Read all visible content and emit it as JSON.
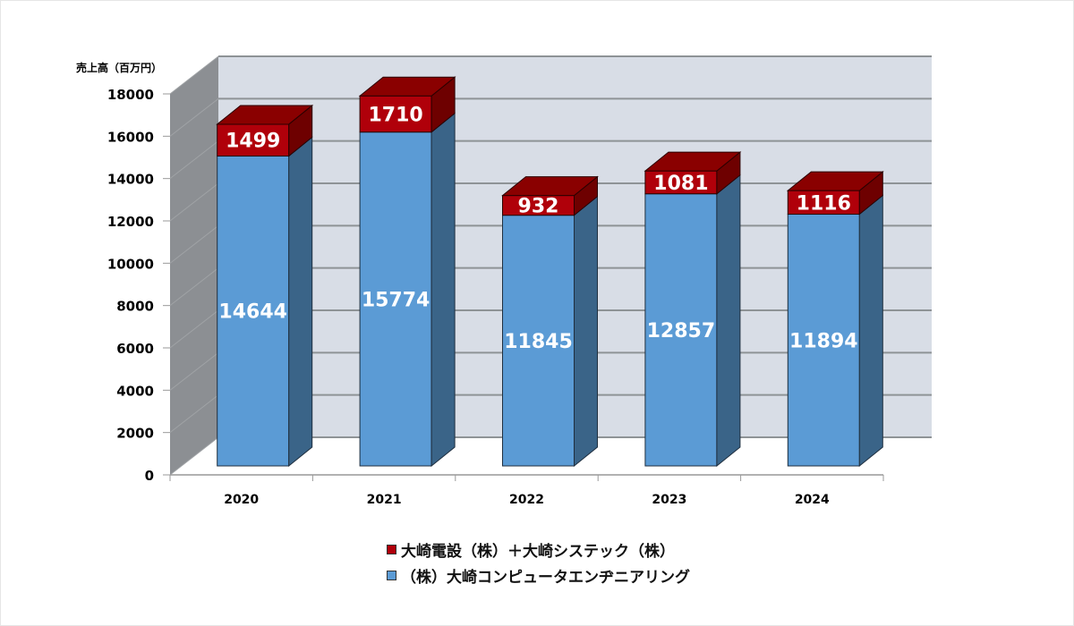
{
  "chart_data": {
    "type": "bar",
    "stacked": true,
    "three_d": true,
    "title": "",
    "ylabel": "売上高（百万円）",
    "xlabel": "",
    "ylim": [
      0,
      18000
    ],
    "yticks": [
      0,
      2000,
      4000,
      6000,
      8000,
      10000,
      12000,
      14000,
      16000,
      18000
    ],
    "categories": [
      "2020",
      "2021",
      "2022",
      "2023",
      "2024"
    ],
    "series": [
      {
        "name": "（株）大崎コンピュータエンヂニアリング",
        "color": "#5b9bd5",
        "values": [
          14644,
          15774,
          11845,
          12857,
          11894
        ]
      },
      {
        "name": "大崎電設（株）＋大崎システック（株）",
        "color": "#b0000a",
        "values": [
          1499,
          1710,
          932,
          1081,
          1116
        ]
      }
    ],
    "legend_position": "bottom",
    "grid": true
  },
  "legend": [
    {
      "label": "大崎電設（株）＋大崎システック（株）",
      "color": "#b0000a"
    },
    {
      "label": "（株）大崎コンピュータエンヂニアリング",
      "color": "#5b9bd5"
    }
  ]
}
